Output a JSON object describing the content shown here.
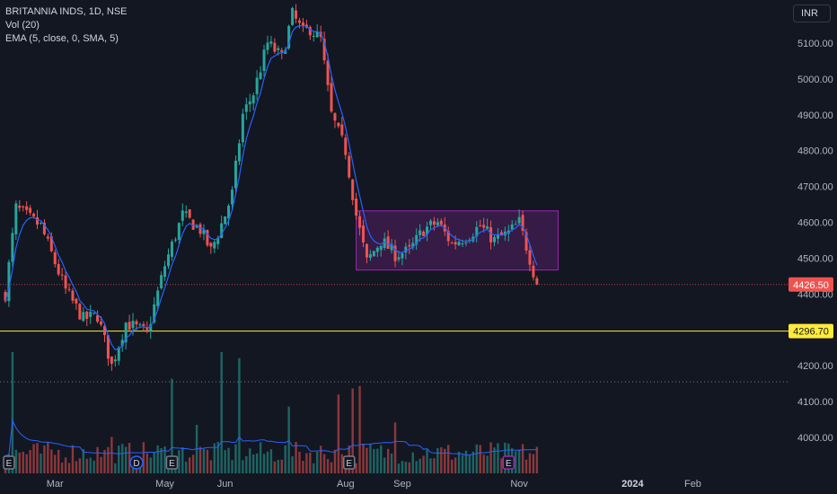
{
  "legend": {
    "title": "BRITANNIA INDS, 1D, NSE",
    "volume": "Vol (20)",
    "ema": "EMA (5, close, 0, SMA, 5)"
  },
  "currency": "INR",
  "colors": {
    "background": "#131722",
    "up": "#26a69a",
    "down": "#ef5350",
    "ema": "#2962ff",
    "support": "#ffeb3b",
    "box_border": "#9c27b0",
    "box_fill": "rgba(156,39,176,0.25)",
    "axis_text": "#b2b5be",
    "volume_ma": "#2962ff"
  },
  "chart_data": {
    "type": "candlestick",
    "price_axis": {
      "ticks": [
        "5100.00",
        "5000.00",
        "4900.00",
        "4800.00",
        "4700.00",
        "4600.00",
        "4500.00",
        "4400.00",
        "4200.00",
        "4100.00",
        "4000.00"
      ],
      "tick_values": [
        5100,
        5000,
        4900,
        4800,
        4700,
        4600,
        4500,
        4400,
        4200,
        4100,
        4000
      ],
      "range": [
        3960,
        5220
      ]
    },
    "time_axis": {
      "labels": [
        "Mar",
        "May",
        "Jun",
        "Aug",
        "Sep",
        "Nov",
        "2024",
        "Feb"
      ],
      "label_index": [
        14,
        45,
        62,
        96,
        112,
        145,
        177,
        194
      ],
      "bold": [
        "2024"
      ],
      "total_days": 221
    },
    "last_price": {
      "label": "4426.50",
      "value": 4426.5
    },
    "support_line": {
      "label": "4296.70",
      "value": 4296.7
    },
    "dotted_level": 4155,
    "consolidation_box": {
      "start": 99,
      "end": 156,
      "top": 4632,
      "bottom": 4467
    },
    "keypoints": [
      [
        0,
        4400
      ],
      [
        3,
        4640
      ],
      [
        7,
        4610
      ],
      [
        10,
        4590
      ],
      [
        17,
        4410
      ],
      [
        22,
        4330
      ],
      [
        26,
        4340
      ],
      [
        30,
        4200
      ],
      [
        34,
        4320
      ],
      [
        40,
        4290
      ],
      [
        45,
        4480
      ],
      [
        50,
        4620
      ],
      [
        55,
        4580
      ],
      [
        58,
        4520
      ],
      [
        62,
        4620
      ],
      [
        64,
        4680
      ],
      [
        67,
        4900
      ],
      [
        70,
        4960
      ],
      [
        74,
        5100
      ],
      [
        78,
        5060
      ],
      [
        81,
        5180
      ],
      [
        84,
        5130
      ],
      [
        86,
        5140
      ],
      [
        89,
        5110
      ],
      [
        92,
        4900
      ],
      [
        96,
        4800
      ],
      [
        99,
        4620
      ],
      [
        102,
        4490
      ],
      [
        106,
        4550
      ],
      [
        110,
        4510
      ],
      [
        114,
        4520
      ],
      [
        118,
        4580
      ],
      [
        122,
        4600
      ],
      [
        126,
        4540
      ],
      [
        130,
        4560
      ],
      [
        134,
        4590
      ],
      [
        138,
        4550
      ],
      [
        142,
        4570
      ],
      [
        145,
        4600
      ],
      [
        148,
        4500
      ],
      [
        150,
        4426.5
      ]
    ],
    "volume_spikes": [
      {
        "i": 2,
        "v": 1.0
      },
      {
        "i": 47,
        "v": 0.78
      },
      {
        "i": 61,
        "v": 1.0
      },
      {
        "i": 66,
        "v": 0.95
      },
      {
        "i": 80,
        "v": 0.55
      },
      {
        "i": 94,
        "v": 0.65
      },
      {
        "i": 98,
        "v": 0.7
      },
      {
        "i": 100,
        "v": 0.72
      },
      {
        "i": 110,
        "v": 0.42
      },
      {
        "i": 30,
        "v": 0.3
      },
      {
        "i": 54,
        "v": 0.4
      }
    ],
    "events": [
      {
        "i": 1,
        "label": "E",
        "type": "earnings"
      },
      {
        "i": 37,
        "label": "D",
        "type": "dividend"
      },
      {
        "i": 47,
        "label": "E",
        "type": "earnings"
      },
      {
        "i": 97,
        "label": "E",
        "type": "earnings"
      },
      {
        "i": 142,
        "label": "E",
        "type": "earnings-upcoming"
      }
    ]
  }
}
